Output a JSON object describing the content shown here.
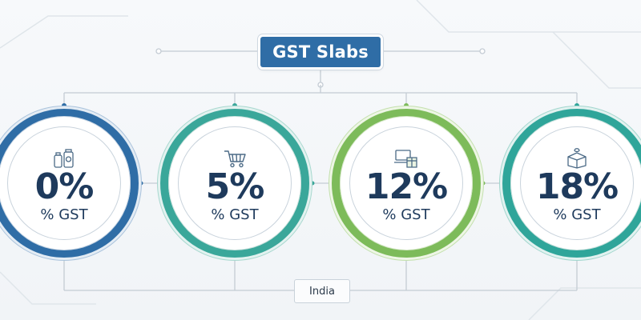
{
  "title": "GST Slabs",
  "slabs": [
    {
      "rate": "0%",
      "label": "% GST",
      "icon": "grocery-icon",
      "accent": "#2f6da6"
    },
    {
      "rate": "5%",
      "label": "% GST",
      "icon": "shopping-cart-icon",
      "accent": "#3aa79a"
    },
    {
      "rate": "12%",
      "label": "% GST",
      "icon": "electronics-icon",
      "accent": "#7dbb5a"
    },
    {
      "rate": "18%",
      "label": "% GST",
      "icon": "package-icon",
      "accent": "#2fa59a"
    }
  ],
  "country": "India",
  "colors": {
    "title_bg": "#2f6da6",
    "text": "#1e3a5c",
    "connector": "#c4ccd4",
    "background": "#f4f6f9"
  }
}
